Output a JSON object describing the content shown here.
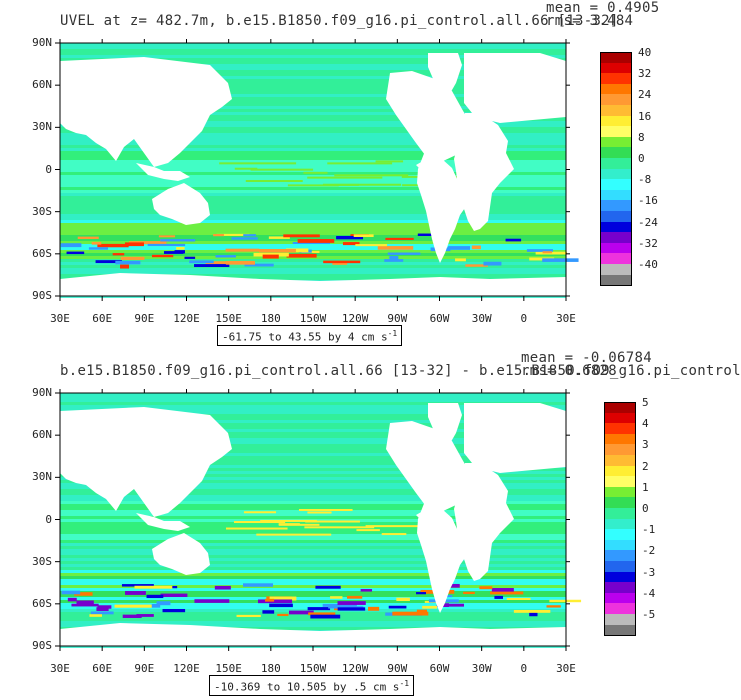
{
  "panels": [
    {
      "title": "UVEL at z= 482.7m, b.e15.B1850.f09_g16.pi_control.all.66 [13-32]",
      "mean": "mean = 0.4905",
      "rms": "rms= 3.484",
      "range": "-61.75 to 43.55 by 4 cm s",
      "range_unit_exp": "-1",
      "colorbar_labels": [
        "40",
        "32",
        "24",
        "16",
        "8",
        "0",
        "-8",
        "-16",
        "-24",
        "-32",
        "-40"
      ]
    },
    {
      "title": "b.e15.B1850.f09_g16.pi_control.all.66 [13-32] - b.e15.B1850.f09_g16.pi_control",
      "mean": "mean = -0.06784",
      "rms": "rms= 0.6828",
      "range": "-10.369 to 10.505 by .5 cm s",
      "range_unit_exp": "-1",
      "colorbar_labels": [
        "5",
        "4",
        "3",
        "2",
        "1",
        "0",
        "-1",
        "-2",
        "-3",
        "-4",
        "-5"
      ]
    }
  ],
  "lat_labels": [
    "90N",
    "60N",
    "30N",
    "0",
    "30S",
    "60S",
    "90S"
  ],
  "lon_labels": [
    "30E",
    "60E",
    "90E",
    "120E",
    "150E",
    "180",
    "150W",
    "120W",
    "90W",
    "60W",
    "30W",
    "0",
    "30E"
  ],
  "colors": {
    "colorbar": [
      "#aa0000",
      "#dd0000",
      "#ff3300",
      "#ff7700",
      "#ff9933",
      "#ffbb33",
      "#ffee33",
      "#ffff66",
      "#77ee33",
      "#33dd55",
      "#33ee99",
      "#33eecc",
      "#33ffff",
      "#33ddff",
      "#3399ff",
      "#2266ee",
      "#0000dd",
      "#7700cc",
      "#bb00ee",
      "#ee33dd",
      "#bbbbbb",
      "#777777"
    ],
    "ocean_base": "#33ee99",
    "ocean_alt": "#44ffcc",
    "land": "#ffffff"
  }
}
